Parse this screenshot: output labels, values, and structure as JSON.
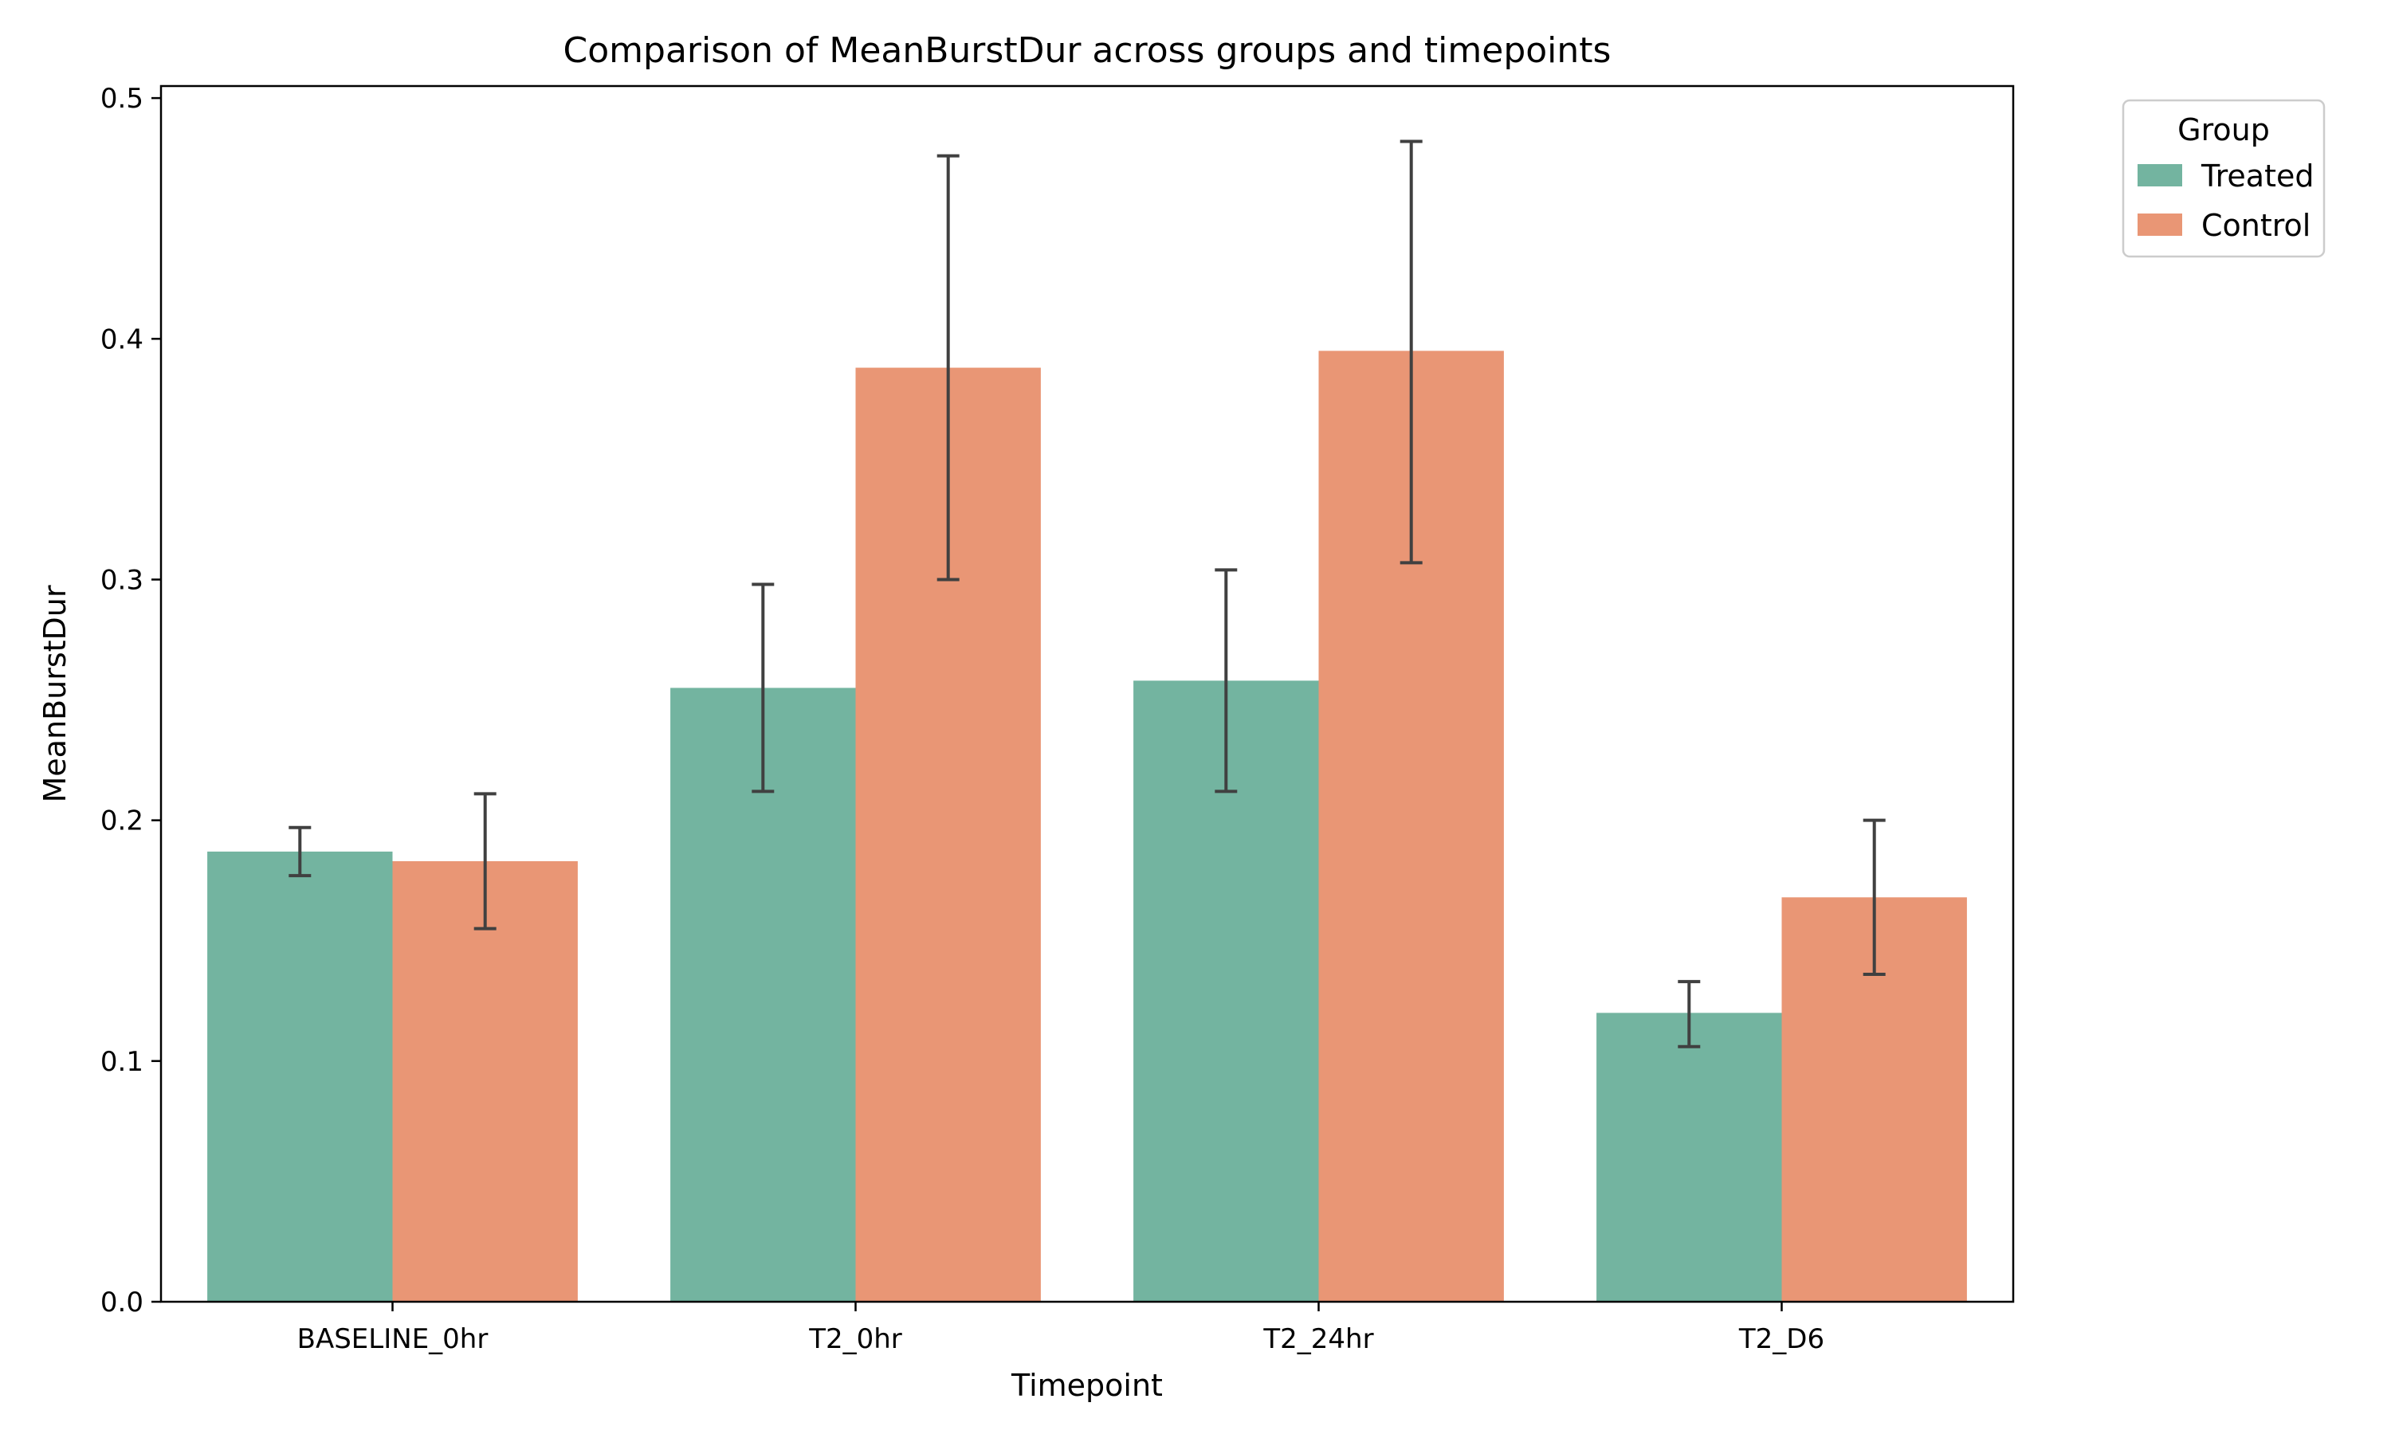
{
  "chart_data": {
    "type": "bar",
    "title": "Comparison of MeanBurstDur across groups and timepoints",
    "xlabel": "Timepoint",
    "ylabel": "MeanBurstDur",
    "categories": [
      "BASELINE_0hr",
      "T2_0hr",
      "T2_24hr",
      "T2_D6"
    ],
    "ylim": [
      0,
      0.505
    ],
    "yticks": [
      0.0,
      0.1,
      0.2,
      0.3,
      0.4,
      0.5
    ],
    "ytick_labels": [
      "0.0",
      "0.1",
      "0.2",
      "0.3",
      "0.4",
      "0.5"
    ],
    "grid": false,
    "legend": {
      "title": "Group",
      "placement": "outside-top-right"
    },
    "series": [
      {
        "name": "Treated",
        "color": "#73b4a0",
        "values": [
          0.187,
          0.255,
          0.258,
          0.12
        ],
        "err_low": [
          0.177,
          0.212,
          0.212,
          0.106
        ],
        "err_high": [
          0.197,
          0.298,
          0.304,
          0.133
        ]
      },
      {
        "name": "Control",
        "color": "#e99675",
        "values": [
          0.183,
          0.388,
          0.395,
          0.168
        ],
        "err_low": [
          0.155,
          0.3,
          0.307,
          0.136
        ],
        "err_high": [
          0.211,
          0.476,
          0.482,
          0.2
        ]
      }
    ]
  }
}
